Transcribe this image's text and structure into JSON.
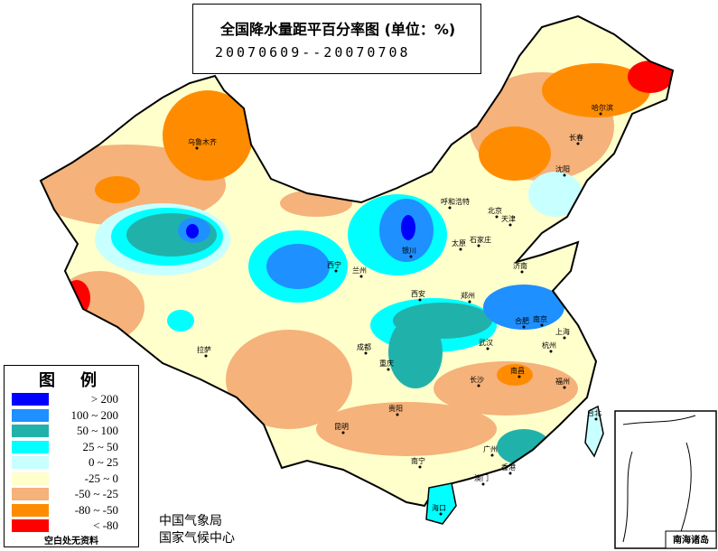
{
  "title": "全国降水量距平百分率图 (单位：%)",
  "period": "20070609--20070708",
  "legend": {
    "title": "图例",
    "items": [
      {
        "label": "> 200",
        "color": "#0000ff"
      },
      {
        "label": "100 ~ 200",
        "color": "#1e90ff"
      },
      {
        "label": "50 ~ 100",
        "color": "#20b2aa"
      },
      {
        "label": "25 ~ 50",
        "color": "#00ffff"
      },
      {
        "label": "0 ~ 25",
        "color": "#c8ffff"
      },
      {
        "label": "-25 ~ 0",
        "color": "#ffffcc"
      },
      {
        "label": "-50 ~ -25",
        "color": "#f5b27a"
      },
      {
        "label": "-80 ~ -50",
        "color": "#ff8c00"
      },
      {
        "label": "< -80",
        "color": "#ff0000"
      }
    ],
    "no_data_note": "空白处无资料"
  },
  "credits": [
    "中国气象局",
    "国家气候中心"
  ],
  "inset_label": "南海诸岛",
  "cities": [
    "乌鲁木齐",
    "哈尔滨",
    "长春",
    "沈阳",
    "呼和浩特",
    "北京",
    "天津",
    "银川",
    "太原",
    "石家庄",
    "济南",
    "西宁",
    "兰州",
    "西安",
    "郑州",
    "合肥",
    "南京",
    "上海",
    "拉萨",
    "成都",
    "重庆",
    "武汉",
    "杭州",
    "长沙",
    "南昌",
    "福州",
    "贵阳",
    "昆明",
    "台北",
    "南宁",
    "广州",
    "香港",
    "澳门",
    "海口"
  ]
}
